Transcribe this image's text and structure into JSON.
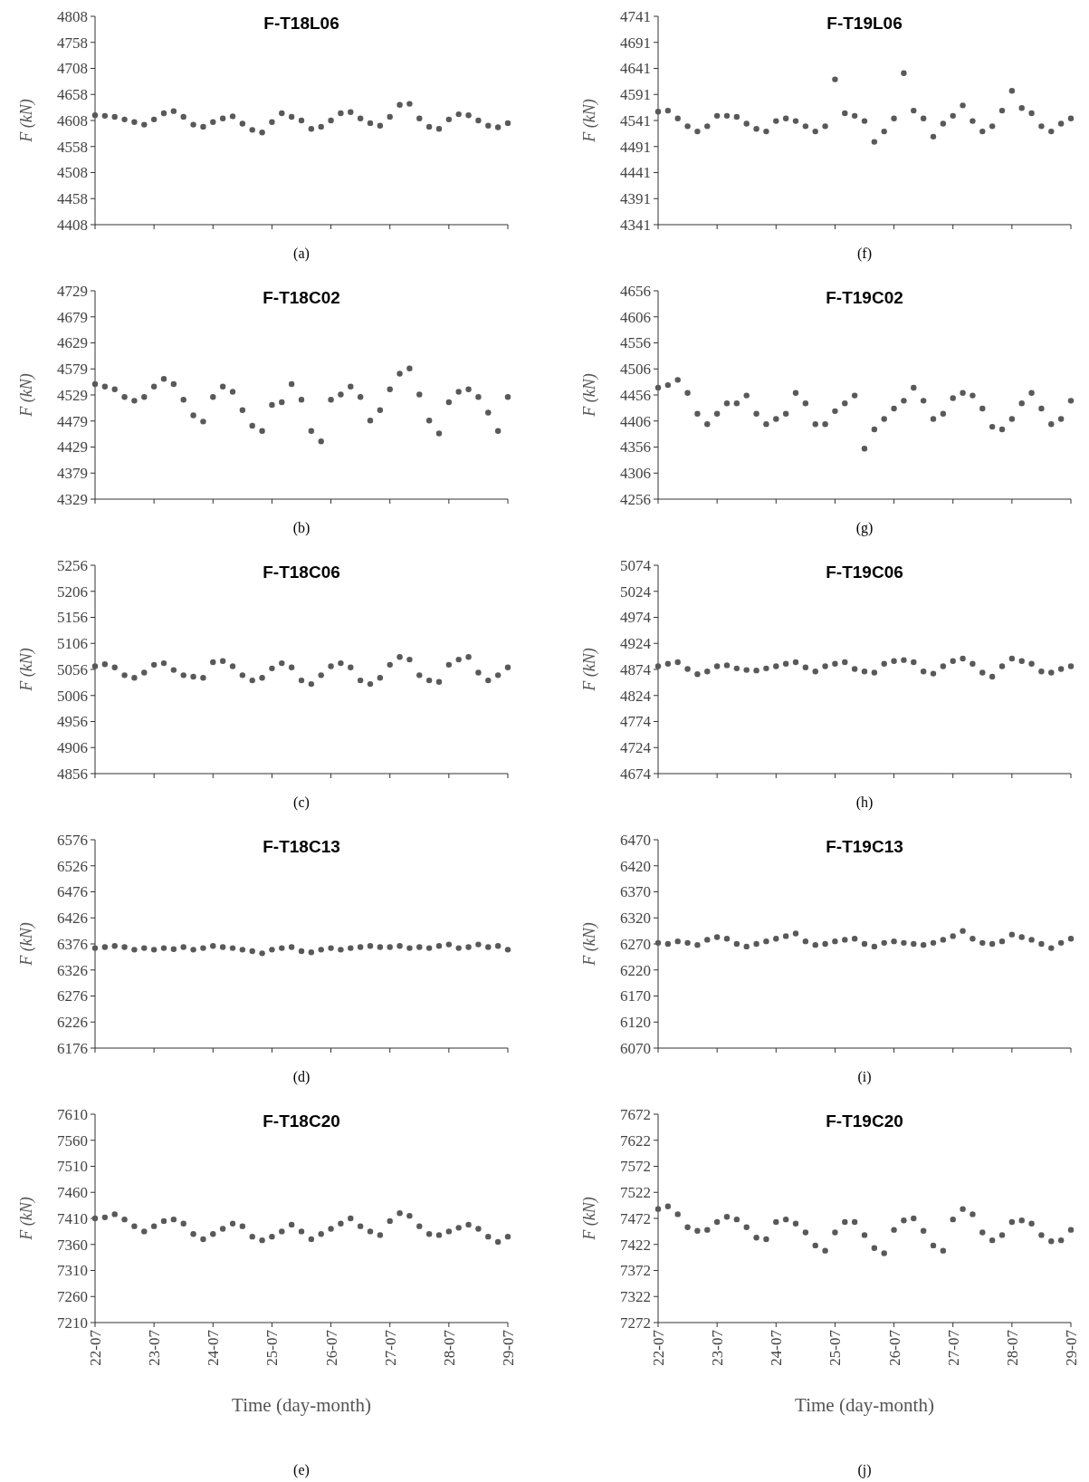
{
  "chart_data": [
    {
      "type": "scatter",
      "title": "F-T18L06",
      "ylabel": "F (kN)",
      "tick_labels": "y",
      "marker": "circle",
      "annotations": [
        "(a)"
      ],
      "xlim": [
        "--07-22",
        "--07-29"
      ],
      "xticks": [
        {
          "value": "--07-22",
          "label": null
        },
        {
          "value": "--07-23",
          "label": null
        },
        {
          "value": "--07-24",
          "label": null
        },
        {
          "value": "--07-25",
          "label": null
        },
        {
          "value": "--07-26",
          "label": null
        },
        {
          "value": "--07-27",
          "label": null
        },
        {
          "value": "--07-28",
          "label": null
        },
        {
          "value": "--07-29",
          "label": null
        }
      ],
      "ylim": [
        4408,
        4808
      ],
      "yticks": [
        4408,
        4458,
        4508,
        4558,
        4608,
        4658,
        4708,
        4758,
        4808
      ],
      "x": [
        "--07-22T00:00",
        "--07-22T04:00",
        "--07-22T08:00",
        "--07-22T12:00",
        "--07-22T16:00",
        "--07-22T20:00",
        "--07-23T00:00",
        "--07-23T04:00",
        "--07-23T08:00",
        "--07-23T12:00",
        "--07-23T16:00",
        "--07-23T20:00",
        "--07-24T00:00",
        "--07-24T04:00",
        "--07-24T08:00",
        "--07-24T12:00",
        "--07-24T16:00",
        "--07-24T20:00",
        "--07-25T00:00",
        "--07-25T04:00",
        "--07-25T08:00",
        "--07-25T12:00",
        "--07-25T16:00",
        "--07-25T20:00",
        "--07-26T00:00",
        "--07-26T04:00",
        "--07-26T08:00",
        "--07-26T12:00",
        "--07-26T16:00",
        "--07-26T20:00",
        "--07-27T00:00",
        "--07-27T04:00",
        "--07-27T08:00",
        "--07-27T12:00",
        "--07-27T16:00",
        "--07-27T20:00",
        "--07-28T00:00",
        "--07-28T04:00",
        "--07-28T08:00",
        "--07-28T12:00",
        "--07-28T16:00",
        "--07-28T20:00",
        "--07-29T00:00"
      ],
      "series": [
        {
          "color": "#595959",
          "values": [
            4618,
            4617,
            4615,
            4610,
            4605,
            4600,
            4610,
            4622,
            4626,
            4615,
            4600,
            4596,
            4605,
            4612,
            4616,
            4602,
            4590,
            4585,
            4605,
            4622,
            4615,
            4608,
            4592,
            4596,
            4608,
            4622,
            4624,
            4612,
            4603,
            4598,
            4615,
            4638,
            4640,
            4612,
            4596,
            4592,
            4610,
            4620,
            4618,
            4608,
            4598,
            4595,
            4603
          ]
        }
      ]
    },
    {
      "type": "scatter",
      "title": "F-T19L06",
      "ylabel": "F (kN)",
      "tick_labels": "y",
      "marker": "circle",
      "annotations": [
        "(f)"
      ],
      "xlim": [
        "--07-22",
        "--07-29"
      ],
      "xticks": [
        {
          "value": "--07-22",
          "label": null
        },
        {
          "value": "--07-23",
          "label": null
        },
        {
          "value": "--07-24",
          "label": null
        },
        {
          "value": "--07-25",
          "label": null
        },
        {
          "value": "--07-26",
          "label": null
        },
        {
          "value": "--07-27",
          "label": null
        },
        {
          "value": "--07-28",
          "label": null
        },
        {
          "value": "--07-29",
          "label": null
        }
      ],
      "ylim": [
        4341,
        4741
      ],
      "yticks": [
        4341,
        4391,
        4441,
        4491,
        4541,
        4591,
        4641,
        4691,
        4741
      ],
      "x": [
        "--07-22T00:00",
        "--07-22T04:00",
        "--07-22T08:00",
        "--07-22T12:00",
        "--07-22T16:00",
        "--07-22T20:00",
        "--07-23T00:00",
        "--07-23T04:00",
        "--07-23T08:00",
        "--07-23T12:00",
        "--07-23T16:00",
        "--07-23T20:00",
        "--07-24T00:00",
        "--07-24T04:00",
        "--07-24T08:00",
        "--07-24T12:00",
        "--07-24T16:00",
        "--07-24T20:00",
        "--07-25T00:00",
        "--07-25T04:00",
        "--07-25T08:00",
        "--07-25T12:00",
        "--07-25T16:00",
        "--07-25T20:00",
        "--07-26T00:00",
        "--07-26T04:00",
        "--07-26T08:00",
        "--07-26T12:00",
        "--07-26T16:00",
        "--07-26T20:00",
        "--07-27T00:00",
        "--07-27T04:00",
        "--07-27T08:00",
        "--07-27T12:00",
        "--07-27T16:00",
        "--07-27T20:00",
        "--07-28T00:00",
        "--07-28T04:00",
        "--07-28T08:00",
        "--07-28T12:00",
        "--07-28T16:00",
        "--07-28T20:00",
        "--07-29T00:00"
      ],
      "series": [
        {
          "color": "#595959",
          "values": [
            4558,
            4560,
            4545,
            4530,
            4520,
            4530,
            4550,
            4550,
            4548,
            4535,
            4525,
            4520,
            4540,
            4545,
            4540,
            4530,
            4520,
            4530,
            4620,
            4555,
            4550,
            4540,
            4500,
            4520,
            4545,
            4632,
            4560,
            4545,
            4510,
            4535,
            4550,
            4570,
            4540,
            4520,
            4530,
            4560,
            4598,
            4565,
            4555,
            4530,
            4520,
            4535,
            4545
          ]
        }
      ]
    },
    {
      "type": "scatter",
      "title": "F-T18C02",
      "ylabel": "F (kN)",
      "tick_labels": "y",
      "marker": "circle",
      "annotations": [
        "(b)"
      ],
      "xlim": [
        "--07-22",
        "--07-29"
      ],
      "xticks": [
        {
          "value": "--07-22",
          "label": null
        },
        {
          "value": "--07-23",
          "label": null
        },
        {
          "value": "--07-24",
          "label": null
        },
        {
          "value": "--07-25",
          "label": null
        },
        {
          "value": "--07-26",
          "label": null
        },
        {
          "value": "--07-27",
          "label": null
        },
        {
          "value": "--07-28",
          "label": null
        },
        {
          "value": "--07-29",
          "label": null
        }
      ],
      "ylim": [
        4329,
        4729
      ],
      "yticks": [
        4329,
        4379,
        4429,
        4479,
        4529,
        4579,
        4629,
        4679,
        4729
      ],
      "x": [
        "--07-22T00:00",
        "--07-22T04:00",
        "--07-22T08:00",
        "--07-22T12:00",
        "--07-22T16:00",
        "--07-22T20:00",
        "--07-23T00:00",
        "--07-23T04:00",
        "--07-23T08:00",
        "--07-23T12:00",
        "--07-23T16:00",
        "--07-23T20:00",
        "--07-24T00:00",
        "--07-24T04:00",
        "--07-24T08:00",
        "--07-24T12:00",
        "--07-24T16:00",
        "--07-24T20:00",
        "--07-25T00:00",
        "--07-25T04:00",
        "--07-25T08:00",
        "--07-25T12:00",
        "--07-25T16:00",
        "--07-25T20:00",
        "--07-26T00:00",
        "--07-26T04:00",
        "--07-26T08:00",
        "--07-26T12:00",
        "--07-26T16:00",
        "--07-26T20:00",
        "--07-27T00:00",
        "--07-27T04:00",
        "--07-27T08:00",
        "--07-27T12:00",
        "--07-27T16:00",
        "--07-27T20:00",
        "--07-28T00:00",
        "--07-28T04:00",
        "--07-28T08:00",
        "--07-28T12:00",
        "--07-28T16:00",
        "--07-28T20:00",
        "--07-29T00:00"
      ],
      "series": [
        {
          "color": "#595959",
          "values": [
            4550,
            4545,
            4540,
            4525,
            4518,
            4525,
            4545,
            4560,
            4550,
            4520,
            4490,
            4478,
            4525,
            4545,
            4535,
            4500,
            4470,
            4460,
            4510,
            4515,
            4550,
            4520,
            4460,
            4440,
            4520,
            4530,
            4545,
            4525,
            4480,
            4500,
            4540,
            4570,
            4580,
            4530,
            4480,
            4455,
            4515,
            4535,
            4540,
            4525,
            4495,
            4460,
            4525
          ]
        }
      ]
    },
    {
      "type": "scatter",
      "title": "F-T19C02",
      "ylabel": "F (kN)",
      "tick_labels": "y",
      "marker": "circle",
      "annotations": [
        "(g)"
      ],
      "xlim": [
        "--07-22",
        "--07-29"
      ],
      "xticks": [
        {
          "value": "--07-22",
          "label": null
        },
        {
          "value": "--07-23",
          "label": null
        },
        {
          "value": "--07-24",
          "label": null
        },
        {
          "value": "--07-25",
          "label": null
        },
        {
          "value": "--07-26",
          "label": null
        },
        {
          "value": "--07-27",
          "label": null
        },
        {
          "value": "--07-28",
          "label": null
        },
        {
          "value": "--07-29",
          "label": null
        }
      ],
      "ylim": [
        4256,
        4656
      ],
      "yticks": [
        4256,
        4306,
        4356,
        4406,
        4456,
        4506,
        4556,
        4606,
        4656
      ],
      "x": [
        "--07-22T00:00",
        "--07-22T04:00",
        "--07-22T08:00",
        "--07-22T12:00",
        "--07-22T16:00",
        "--07-22T20:00",
        "--07-23T00:00",
        "--07-23T04:00",
        "--07-23T08:00",
        "--07-23T12:00",
        "--07-23T16:00",
        "--07-23T20:00",
        "--07-24T00:00",
        "--07-24T04:00",
        "--07-24T08:00",
        "--07-24T12:00",
        "--07-24T16:00",
        "--07-24T20:00",
        "--07-25T00:00",
        "--07-25T04:00",
        "--07-25T08:00",
        "--07-25T12:00",
        "--07-25T16:00",
        "--07-25T20:00",
        "--07-26T00:00",
        "--07-26T04:00",
        "--07-26T08:00",
        "--07-26T12:00",
        "--07-26T16:00",
        "--07-26T20:00",
        "--07-27T00:00",
        "--07-27T04:00",
        "--07-27T08:00",
        "--07-27T12:00",
        "--07-27T16:00",
        "--07-27T20:00",
        "--07-28T00:00",
        "--07-28T04:00",
        "--07-28T08:00",
        "--07-28T12:00",
        "--07-28T16:00",
        "--07-28T20:00",
        "--07-29T00:00"
      ],
      "series": [
        {
          "color": "#595959",
          "values": [
            4470,
            4475,
            4485,
            4460,
            4420,
            4400,
            4420,
            4440,
            4440,
            4455,
            4420,
            4400,
            4410,
            4420,
            4460,
            4440,
            4400,
            4400,
            4425,
            4440,
            4455,
            4353,
            4390,
            4410,
            4430,
            4445,
            4470,
            4445,
            4410,
            4420,
            4450,
            4460,
            4455,
            4430,
            4395,
            4390,
            4410,
            4440,
            4460,
            4430,
            4400,
            4410,
            4445
          ]
        }
      ]
    },
    {
      "type": "scatter",
      "title": "F-T18C06",
      "ylabel": "F (kN)",
      "tick_labels": "y",
      "marker": "circle",
      "annotations": [
        "(c)"
      ],
      "xlim": [
        "--07-22",
        "--07-29"
      ],
      "xticks": [
        {
          "value": "--07-22",
          "label": null
        },
        {
          "value": "--07-23",
          "label": null
        },
        {
          "value": "--07-24",
          "label": null
        },
        {
          "value": "--07-25",
          "label": null
        },
        {
          "value": "--07-26",
          "label": null
        },
        {
          "value": "--07-27",
          "label": null
        },
        {
          "value": "--07-28",
          "label": null
        },
        {
          "value": "--07-29",
          "label": null
        }
      ],
      "ylim": [
        4856,
        5256
      ],
      "yticks": [
        4856,
        4906,
        4956,
        5006,
        5056,
        5106,
        5156,
        5206,
        5256
      ],
      "x": [
        "--07-22T00:00",
        "--07-22T04:00",
        "--07-22T08:00",
        "--07-22T12:00",
        "--07-22T16:00",
        "--07-22T20:00",
        "--07-23T00:00",
        "--07-23T04:00",
        "--07-23T08:00",
        "--07-23T12:00",
        "--07-23T16:00",
        "--07-23T20:00",
        "--07-24T00:00",
        "--07-24T04:00",
        "--07-24T08:00",
        "--07-24T12:00",
        "--07-24T16:00",
        "--07-24T20:00",
        "--07-25T00:00",
        "--07-25T04:00",
        "--07-25T08:00",
        "--07-25T12:00",
        "--07-25T16:00",
        "--07-25T20:00",
        "--07-26T00:00",
        "--07-26T04:00",
        "--07-26T08:00",
        "--07-26T12:00",
        "--07-26T16:00",
        "--07-26T20:00",
        "--07-27T00:00",
        "--07-27T04:00",
        "--07-27T08:00",
        "--07-27T12:00",
        "--07-27T16:00",
        "--07-27T20:00",
        "--07-28T00:00",
        "--07-28T04:00",
        "--07-28T08:00",
        "--07-28T12:00",
        "--07-28T16:00",
        "--07-28T20:00",
        "--07-29T00:00"
      ],
      "series": [
        {
          "color": "#595959",
          "values": [
            5062,
            5066,
            5060,
            5045,
            5040,
            5050,
            5065,
            5068,
            5055,
            5045,
            5042,
            5040,
            5070,
            5072,
            5062,
            5045,
            5035,
            5040,
            5058,
            5068,
            5060,
            5035,
            5028,
            5045,
            5062,
            5068,
            5060,
            5035,
            5028,
            5040,
            5065,
            5080,
            5075,
            5045,
            5035,
            5032,
            5065,
            5075,
            5080,
            5050,
            5035,
            5045,
            5060
          ]
        }
      ]
    },
    {
      "type": "scatter",
      "title": "F-T19C06",
      "ylabel": "F (kN)",
      "tick_labels": "y",
      "marker": "circle",
      "annotations": [
        "(h)"
      ],
      "xlim": [
        "--07-22",
        "--07-29"
      ],
      "xticks": [
        {
          "value": "--07-22",
          "label": null
        },
        {
          "value": "--07-23",
          "label": null
        },
        {
          "value": "--07-24",
          "label": null
        },
        {
          "value": "--07-25",
          "label": null
        },
        {
          "value": "--07-26",
          "label": null
        },
        {
          "value": "--07-27",
          "label": null
        },
        {
          "value": "--07-28",
          "label": null
        },
        {
          "value": "--07-29",
          "label": null
        }
      ],
      "ylim": [
        4674,
        5074
      ],
      "yticks": [
        4674,
        4724,
        4774,
        4824,
        4874,
        4924,
        4974,
        5024,
        5074
      ],
      "x": [
        "--07-22T00:00",
        "--07-22T04:00",
        "--07-22T08:00",
        "--07-22T12:00",
        "--07-22T16:00",
        "--07-22T20:00",
        "--07-23T00:00",
        "--07-23T04:00",
        "--07-23T08:00",
        "--07-23T12:00",
        "--07-23T16:00",
        "--07-23T20:00",
        "--07-24T00:00",
        "--07-24T04:00",
        "--07-24T08:00",
        "--07-24T12:00",
        "--07-24T16:00",
        "--07-24T20:00",
        "--07-25T00:00",
        "--07-25T04:00",
        "--07-25T08:00",
        "--07-25T12:00",
        "--07-25T16:00",
        "--07-25T20:00",
        "--07-26T00:00",
        "--07-26T04:00",
        "--07-26T08:00",
        "--07-26T12:00",
        "--07-26T16:00",
        "--07-26T20:00",
        "--07-27T00:00",
        "--07-27T04:00",
        "--07-27T08:00",
        "--07-27T12:00",
        "--07-27T16:00",
        "--07-27T20:00",
        "--07-28T00:00",
        "--07-28T04:00",
        "--07-28T08:00",
        "--07-28T12:00",
        "--07-28T16:00",
        "--07-28T20:00",
        "--07-29T00:00"
      ],
      "series": [
        {
          "color": "#595959",
          "values": [
            4880,
            4885,
            4888,
            4875,
            4865,
            4870,
            4880,
            4882,
            4876,
            4873,
            4872,
            4876,
            4880,
            4885,
            4888,
            4878,
            4870,
            4880,
            4885,
            4888,
            4875,
            4870,
            4868,
            4885,
            4890,
            4892,
            4888,
            4870,
            4866,
            4880,
            4890,
            4895,
            4885,
            4868,
            4860,
            4880,
            4895,
            4890,
            4885,
            4870,
            4868,
            4875,
            4880
          ]
        }
      ]
    },
    {
      "type": "scatter",
      "title": "F-T18C13",
      "ylabel": "F (kN)",
      "tick_labels": "y",
      "marker": "circle",
      "annotations": [
        "(d)"
      ],
      "xlim": [
        "--07-22",
        "--07-29"
      ],
      "xticks": [
        {
          "value": "--07-22",
          "label": null
        },
        {
          "value": "--07-23",
          "label": null
        },
        {
          "value": "--07-24",
          "label": null
        },
        {
          "value": "--07-25",
          "label": null
        },
        {
          "value": "--07-26",
          "label": null
        },
        {
          "value": "--07-27",
          "label": null
        },
        {
          "value": "--07-28",
          "label": null
        },
        {
          "value": "--07-29",
          "label": null
        }
      ],
      "ylim": [
        6176,
        6576
      ],
      "yticks": [
        6176,
        6226,
        6276,
        6326,
        6376,
        6426,
        6476,
        6526,
        6576
      ],
      "x": [
        "--07-22T00:00",
        "--07-22T04:00",
        "--07-22T08:00",
        "--07-22T12:00",
        "--07-22T16:00",
        "--07-22T20:00",
        "--07-23T00:00",
        "--07-23T04:00",
        "--07-23T08:00",
        "--07-23T12:00",
        "--07-23T16:00",
        "--07-23T20:00",
        "--07-24T00:00",
        "--07-24T04:00",
        "--07-24T08:00",
        "--07-24T12:00",
        "--07-24T16:00",
        "--07-24T20:00",
        "--07-25T00:00",
        "--07-25T04:00",
        "--07-25T08:00",
        "--07-25T12:00",
        "--07-25T16:00",
        "--07-25T20:00",
        "--07-26T00:00",
        "--07-26T04:00",
        "--07-26T08:00",
        "--07-26T12:00",
        "--07-26T16:00",
        "--07-26T20:00",
        "--07-27T00:00",
        "--07-27T04:00",
        "--07-27T08:00",
        "--07-27T12:00",
        "--07-27T16:00",
        "--07-27T20:00",
        "--07-28T00:00",
        "--07-28T04:00",
        "--07-28T08:00",
        "--07-28T12:00",
        "--07-28T16:00",
        "--07-28T20:00",
        "--07-29T00:00"
      ],
      "series": [
        {
          "color": "#595959",
          "values": [
            6368,
            6370,
            6372,
            6370,
            6365,
            6368,
            6365,
            6368,
            6366,
            6370,
            6365,
            6368,
            6372,
            6370,
            6368,
            6365,
            6362,
            6358,
            6365,
            6368,
            6370,
            6362,
            6360,
            6365,
            6368,
            6365,
            6368,
            6370,
            6372,
            6370,
            6370,
            6372,
            6368,
            6370,
            6368,
            6372,
            6375,
            6368,
            6370,
            6375,
            6370,
            6372,
            6365
          ]
        }
      ]
    },
    {
      "type": "scatter",
      "title": "F-T19C13",
      "ylabel": "F (kN)",
      "tick_labels": "y",
      "marker": "circle",
      "annotations": [
        "(i)"
      ],
      "xlim": [
        "--07-22",
        "--07-29"
      ],
      "xticks": [
        {
          "value": "--07-22",
          "label": null
        },
        {
          "value": "--07-23",
          "label": null
        },
        {
          "value": "--07-24",
          "label": null
        },
        {
          "value": "--07-25",
          "label": null
        },
        {
          "value": "--07-26",
          "label": null
        },
        {
          "value": "--07-27",
          "label": null
        },
        {
          "value": "--07-28",
          "label": null
        },
        {
          "value": "--07-29",
          "label": null
        }
      ],
      "ylim": [
        6070,
        6470
      ],
      "yticks": [
        6070,
        6120,
        6170,
        6220,
        6270,
        6320,
        6370,
        6420,
        6470
      ],
      "x": [
        "--07-22T00:00",
        "--07-22T04:00",
        "--07-22T08:00",
        "--07-22T12:00",
        "--07-22T16:00",
        "--07-22T20:00",
        "--07-23T00:00",
        "--07-23T04:00",
        "--07-23T08:00",
        "--07-23T12:00",
        "--07-23T16:00",
        "--07-23T20:00",
        "--07-24T00:00",
        "--07-24T04:00",
        "--07-24T08:00",
        "--07-24T12:00",
        "--07-24T16:00",
        "--07-24T20:00",
        "--07-25T00:00",
        "--07-25T04:00",
        "--07-25T08:00",
        "--07-25T12:00",
        "--07-25T16:00",
        "--07-25T20:00",
        "--07-26T00:00",
        "--07-26T04:00",
        "--07-26T08:00",
        "--07-26T12:00",
        "--07-26T16:00",
        "--07-26T20:00",
        "--07-27T00:00",
        "--07-27T04:00",
        "--07-27T08:00",
        "--07-27T12:00",
        "--07-27T16:00",
        "--07-27T20:00",
        "--07-28T00:00",
        "--07-28T04:00",
        "--07-28T08:00",
        "--07-28T12:00",
        "--07-28T16:00",
        "--07-28T20:00",
        "--07-29T00:00"
      ],
      "series": [
        {
          "color": "#595959",
          "values": [
            6272,
            6270,
            6275,
            6272,
            6268,
            6278,
            6283,
            6280,
            6270,
            6265,
            6270,
            6275,
            6280,
            6285,
            6290,
            6275,
            6268,
            6270,
            6275,
            6278,
            6280,
            6270,
            6265,
            6272,
            6275,
            6272,
            6270,
            6268,
            6272,
            6278,
            6285,
            6295,
            6280,
            6272,
            6270,
            6275,
            6288,
            6283,
            6278,
            6270,
            6262,
            6272,
            6280
          ]
        }
      ]
    },
    {
      "type": "scatter",
      "title": "F-T18C20",
      "ylabel": "F (kN)",
      "xlabel": "Time (day-month)",
      "marker": "circle",
      "annotations": [
        "(e)"
      ],
      "xlim": [
        "--07-22",
        "--07-29"
      ],
      "xticks": [
        {
          "value": "--07-22",
          "label": "22-07"
        },
        {
          "value": "--07-23",
          "label": "23-07"
        },
        {
          "value": "--07-24",
          "label": "24-07"
        },
        {
          "value": "--07-25",
          "label": "25-07"
        },
        {
          "value": "--07-26",
          "label": "26-07"
        },
        {
          "value": "--07-27",
          "label": "27-07"
        },
        {
          "value": "--07-28",
          "label": "28-07"
        },
        {
          "value": "--07-29",
          "label": "29-07"
        }
      ],
      "ylim": [
        7210,
        7610
      ],
      "yticks": [
        7210,
        7260,
        7310,
        7360,
        7410,
        7460,
        7510,
        7560,
        7610
      ],
      "x": [
        "--07-22T00:00",
        "--07-22T04:00",
        "--07-22T08:00",
        "--07-22T12:00",
        "--07-22T16:00",
        "--07-22T20:00",
        "--07-23T00:00",
        "--07-23T04:00",
        "--07-23T08:00",
        "--07-23T12:00",
        "--07-23T16:00",
        "--07-23T20:00",
        "--07-24T00:00",
        "--07-24T04:00",
        "--07-24T08:00",
        "--07-24T12:00",
        "--07-24T16:00",
        "--07-24T20:00",
        "--07-25T00:00",
        "--07-25T04:00",
        "--07-25T08:00",
        "--07-25T12:00",
        "--07-25T16:00",
        "--07-25T20:00",
        "--07-26T00:00",
        "--07-26T04:00",
        "--07-26T08:00",
        "--07-26T12:00",
        "--07-26T16:00",
        "--07-26T20:00",
        "--07-27T00:00",
        "--07-27T04:00",
        "--07-27T08:00",
        "--07-27T12:00",
        "--07-27T16:00",
        "--07-27T20:00",
        "--07-28T00:00",
        "--07-28T04:00",
        "--07-28T08:00",
        "--07-28T12:00",
        "--07-28T16:00",
        "--07-28T20:00",
        "--07-29T00:00"
      ],
      "series": [
        {
          "color": "#595959",
          "values": [
            7410,
            7412,
            7418,
            7408,
            7395,
            7385,
            7395,
            7405,
            7408,
            7400,
            7380,
            7370,
            7380,
            7390,
            7400,
            7395,
            7375,
            7368,
            7375,
            7385,
            7398,
            7385,
            7370,
            7380,
            7390,
            7400,
            7410,
            7395,
            7385,
            7378,
            7405,
            7420,
            7415,
            7395,
            7380,
            7378,
            7385,
            7392,
            7398,
            7390,
            7375,
            7365,
            7375
          ]
        }
      ]
    },
    {
      "type": "scatter",
      "title": "F-T19C20",
      "ylabel": "F (kN)",
      "xlabel": "Time (day-month)",
      "marker": "circle",
      "annotations": [
        "(j)"
      ],
      "xlim": [
        "--07-22",
        "--07-29"
      ],
      "xticks": [
        {
          "value": "--07-22",
          "label": "22-07"
        },
        {
          "value": "--07-23",
          "label": "23-07"
        },
        {
          "value": "--07-24",
          "label": "24-07"
        },
        {
          "value": "--07-25",
          "label": "25-07"
        },
        {
          "value": "--07-26",
          "label": "26-07"
        },
        {
          "value": "--07-27",
          "label": "27-07"
        },
        {
          "value": "--07-28",
          "label": "28-07"
        },
        {
          "value": "--07-29",
          "label": "29-07"
        }
      ],
      "ylim": [
        7272,
        7672
      ],
      "yticks": [
        7272,
        7322,
        7372,
        7422,
        7472,
        7522,
        7572,
        7622,
        7672
      ],
      "x": [
        "--07-22T00:00",
        "--07-22T04:00",
        "--07-22T08:00",
        "--07-22T12:00",
        "--07-22T16:00",
        "--07-22T20:00",
        "--07-23T00:00",
        "--07-23T04:00",
        "--07-23T08:00",
        "--07-23T12:00",
        "--07-23T16:00",
        "--07-23T20:00",
        "--07-24T00:00",
        "--07-24T04:00",
        "--07-24T08:00",
        "--07-24T12:00",
        "--07-24T16:00",
        "--07-24T20:00",
        "--07-25T00:00",
        "--07-25T04:00",
        "--07-25T08:00",
        "--07-25T12:00",
        "--07-25T16:00",
        "--07-25T20:00",
        "--07-26T00:00",
        "--07-26T04:00",
        "--07-26T08:00",
        "--07-26T12:00",
        "--07-26T16:00",
        "--07-26T20:00",
        "--07-27T00:00",
        "--07-27T04:00",
        "--07-27T08:00",
        "--07-27T12:00",
        "--07-27T16:00",
        "--07-27T20:00",
        "--07-28T00:00",
        "--07-28T04:00",
        "--07-28T08:00",
        "--07-28T12:00",
        "--07-28T16:00",
        "--07-28T20:00",
        "--07-29T00:00"
      ],
      "series": [
        {
          "color": "#595959",
          "values": [
            7490,
            7495,
            7480,
            7455,
            7448,
            7450,
            7465,
            7475,
            7470,
            7455,
            7435,
            7432,
            7465,
            7470,
            7462,
            7445,
            7420,
            7410,
            7445,
            7465,
            7465,
            7440,
            7415,
            7405,
            7450,
            7468,
            7472,
            7448,
            7420,
            7410,
            7470,
            7490,
            7480,
            7445,
            7430,
            7440,
            7465,
            7468,
            7462,
            7440,
            7428,
            7430,
            7450
          ]
        }
      ]
    }
  ]
}
